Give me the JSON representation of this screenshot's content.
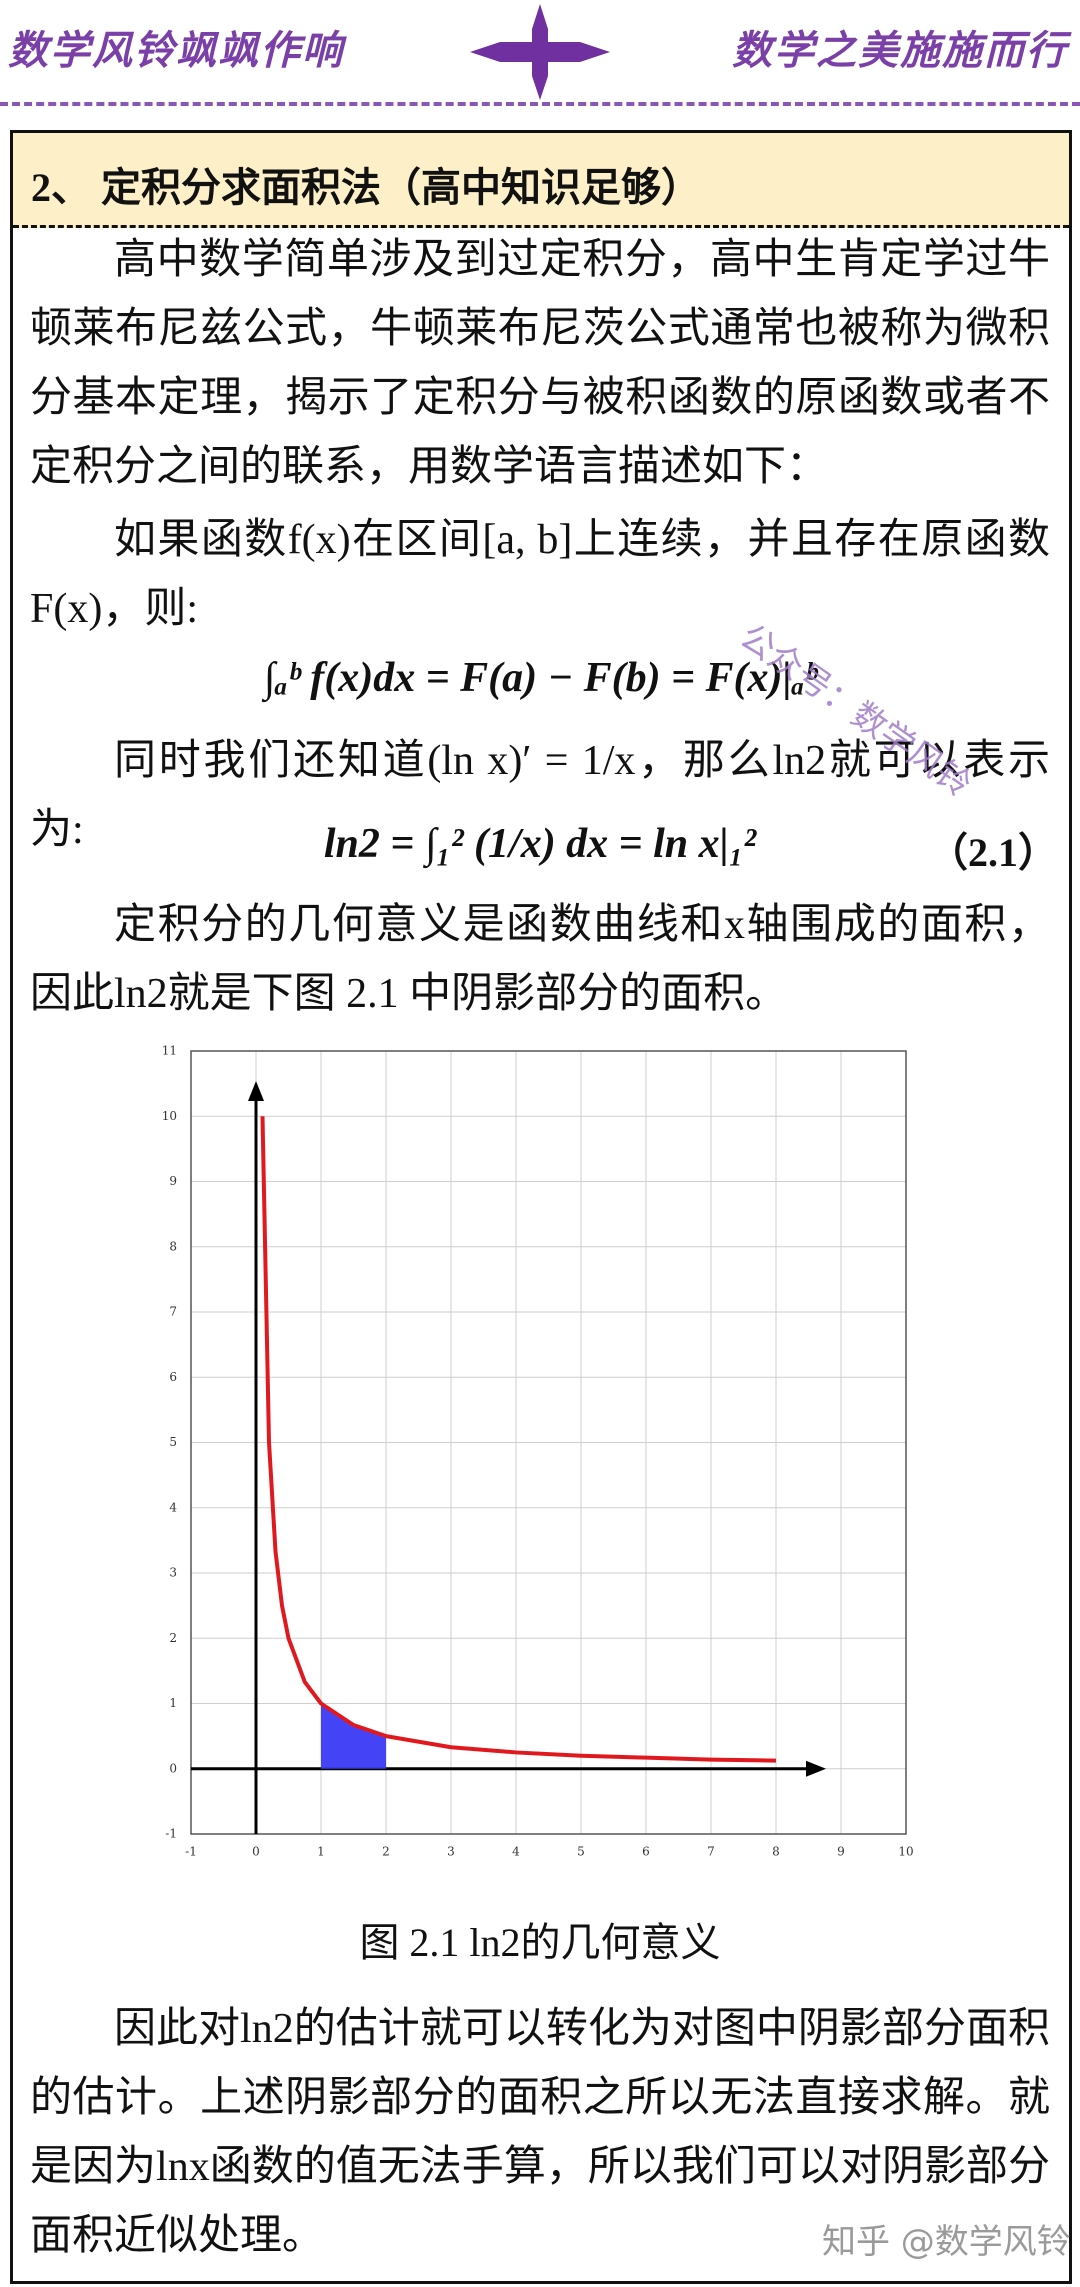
{
  "header": {
    "left": "数学风铃飒飒作响",
    "right": "数学之美施施而行"
  },
  "section_title": "2、 定积分求面积法（高中知识足够）",
  "paragraphs": [
    "高中数学简单涉及到过定积分，高中生肯定学过牛顿莱布尼兹公式，牛顿莱布尼茨公式通常也被称为微积分基本定理，揭示了定积分与被积函数的原函数或者不定积分之间的联系，用数学语言描述如下：",
    "如果函数f(x)在区间[a, b]上连续，并且存在原函数F(x)，则:",
    "同时我们还知道(ln x)′ = 1/x，那么ln2就可以表示为:",
    "定积分的几何意义是函数曲线和x轴围成的面积，因此ln2就是下图 2.1 中阴影部分的面积。",
    "因此对ln2的估计就可以转化为对图中阴影部分面积的估计。上述阴影部分的面积之所以无法直接求解。就是因为lnx函数的值无法手算，所以我们可以对阴影部分面积近似处理。"
  ],
  "formulas": [
    "∫ₐᵇ f(x)dx = F(a) − F(b) = F(x)|ₐᵇ",
    "ln2 = ∫₁² (1/x) dx = ln x|₁²"
  ],
  "formula_number": "（2.1）",
  "caption": "图 2.1  ln2的几何意义",
  "watermark": "公众号：数学风铃",
  "footer_watermark": "知乎 @数学风铃",
  "chart_data": {
    "type": "line",
    "x": [
      0.1,
      0.2,
      0.3,
      0.4,
      0.5,
      0.75,
      1,
      1.5,
      2,
      3,
      4,
      5,
      6,
      7,
      8
    ],
    "series": [
      {
        "color": "#e0191f",
        "values": [
          10,
          5,
          3.33,
          2.5,
          2,
          1.33,
          1,
          0.67,
          0.5,
          0.33,
          0.25,
          0.2,
          0.17,
          0.14,
          0.125
        ]
      }
    ],
    "shaded_area": {
      "color": "#3a3af5",
      "x": [
        1,
        1.25,
        1.5,
        1.75,
        2
      ],
      "values": [
        1,
        0.8,
        0.67,
        0.57,
        0.5
      ]
    },
    "xlim": [
      -1,
      10
    ],
    "ylim": [
      -1,
      11
    ],
    "xticks": [
      -1,
      0,
      1,
      2,
      3,
      4,
      5,
      6,
      7,
      8,
      9,
      10
    ],
    "yticks": [
      -1,
      0,
      1,
      2,
      3,
      4,
      5,
      6,
      7,
      8,
      9,
      10,
      11
    ],
    "grid": true
  }
}
